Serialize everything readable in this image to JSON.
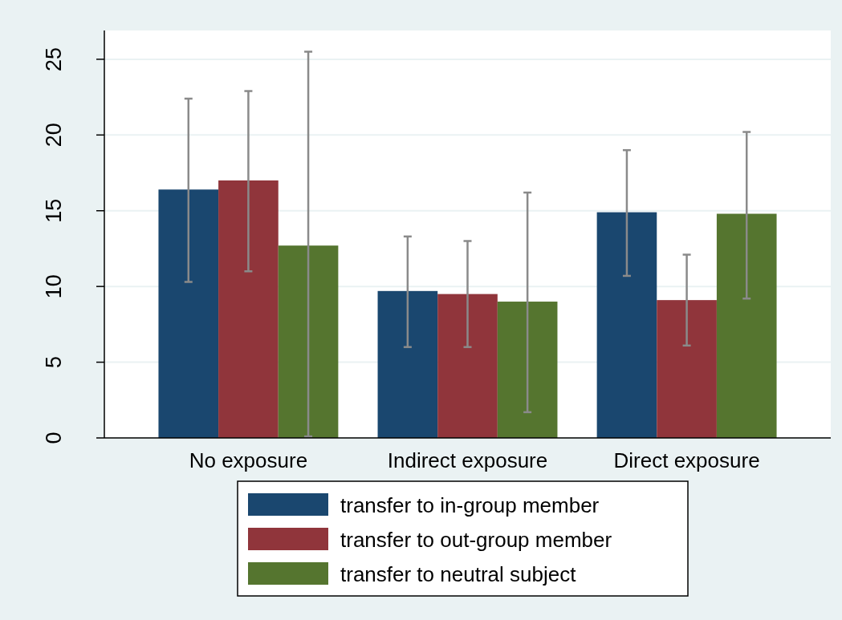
{
  "chart_data": {
    "type": "bar",
    "categories": [
      "No exposure",
      "Indirect exposure",
      "Direct exposure"
    ],
    "series": [
      {
        "name": "transfer to in-group member",
        "color": "#1a476f",
        "values": [
          16.4,
          9.7,
          14.9
        ],
        "errors": [
          [
            10.3,
            22.4
          ],
          [
            6.0,
            13.3
          ],
          [
            10.7,
            19.0
          ]
        ]
      },
      {
        "name": "transfer to out-group member",
        "color": "#90353b",
        "values": [
          17.0,
          9.5,
          9.1
        ],
        "errors": [
          [
            11.0,
            22.9
          ],
          [
            6.0,
            13.0
          ],
          [
            6.1,
            12.1
          ]
        ]
      },
      {
        "name": "transfer to neutral subject",
        "color": "#55752f",
        "values": [
          12.7,
          9.0,
          14.8
        ],
        "errors": [
          [
            0.1,
            25.5
          ],
          [
            1.7,
            16.2
          ],
          [
            9.2,
            20.2
          ]
        ]
      }
    ],
    "ylim": [
      0,
      26.9
    ],
    "yticks": [
      0,
      5,
      10,
      15,
      20,
      25
    ],
    "grid": "y",
    "legend": "bottom"
  }
}
